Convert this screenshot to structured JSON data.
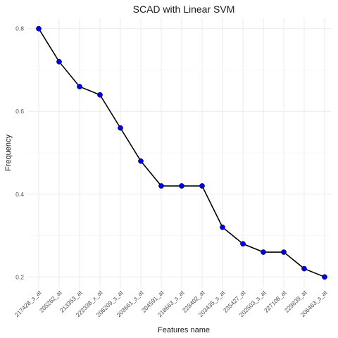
{
  "chart_data": {
    "type": "line",
    "title": "SCAD with Linear SVM",
    "xlabel": "Features name",
    "ylabel": "Frequency",
    "categories": [
      "217428_s_at",
      "205262_at",
      "213353_at",
      "222338_x_at",
      "206209_s_at",
      "203661_s_at",
      "204591_at",
      "218663_s_at",
      "228402_at",
      "203435_s_at",
      "235427_at",
      "202503_s_at",
      "227108_at",
      "229839_at",
      "206463_s_at"
    ],
    "values": [
      0.8,
      0.72,
      0.66,
      0.64,
      0.56,
      0.48,
      0.42,
      0.42,
      0.42,
      0.32,
      0.28,
      0.26,
      0.26,
      0.22,
      0.2
    ],
    "ylim": [
      0.175,
      0.825
    ],
    "yticks": [
      0.2,
      0.4,
      0.6,
      0.8
    ],
    "ytick_labels": [
      "0.2",
      "0.4",
      "0.6",
      "0.8"
    ],
    "grid": true,
    "line_color": "#000000",
    "point_color": "#0000ee"
  }
}
